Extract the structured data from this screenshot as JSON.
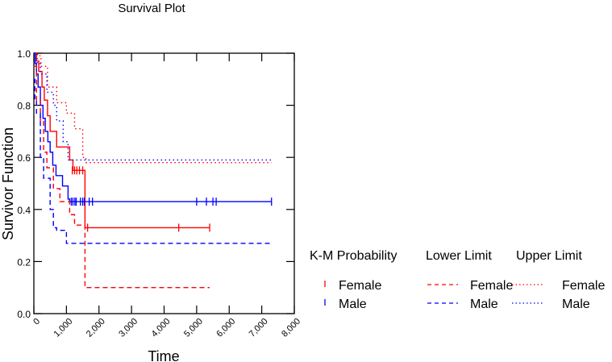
{
  "chart_data": {
    "type": "line",
    "title": "Survival Plot",
    "xlabel": "Time",
    "ylabel": "Survivor Function",
    "xlim": [
      0,
      8000
    ],
    "ylim": [
      0,
      1.0
    ],
    "xticks": [
      0,
      1000,
      2000,
      3000,
      4000,
      5000,
      6000,
      7000,
      8000
    ],
    "xtick_labels": [
      "0",
      "1,000",
      "2,000",
      "3,000",
      "4,000",
      "5,000",
      "6,000",
      "7,000",
      "8,000"
    ],
    "yticks": [
      0,
      0.2,
      0.4,
      0.6,
      0.8,
      1.0
    ],
    "ytick_labels": [
      "0.0",
      "0.2",
      "0.4",
      "0.6",
      "0.8",
      "1.0"
    ],
    "grid": false,
    "legend": {
      "placement": "right",
      "groups": [
        {
          "title": "K-M Probability",
          "entries": [
            {
              "label": "Female",
              "color": "#ff0000",
              "style": "tick"
            },
            {
              "label": "Male",
              "color": "#0000ff",
              "style": "tick"
            }
          ]
        },
        {
          "title": "Lower Limit",
          "entries": [
            {
              "label": "Female",
              "color": "#ff0000",
              "style": "dashed"
            },
            {
              "label": "Male",
              "color": "#0000ff",
              "style": "dashed"
            }
          ]
        },
        {
          "title": "Upper Limit",
          "entries": [
            {
              "label": "Female",
              "color": "#ff0000",
              "style": "dotted"
            },
            {
              "label": "Male",
              "color": "#0000ff",
              "style": "dotted"
            }
          ]
        }
      ]
    },
    "series": [
      {
        "name": "K-M Female",
        "color": "#ff0000",
        "style": "solid",
        "step": true,
        "x": [
          0,
          80,
          150,
          250,
          320,
          420,
          500,
          700,
          950,
          1100,
          1200,
          1350,
          1530,
          1570,
          1620,
          5400
        ],
        "y": [
          1.0,
          0.97,
          0.93,
          0.87,
          0.82,
          0.76,
          0.7,
          0.64,
          0.64,
          0.59,
          0.55,
          0.55,
          0.55,
          0.33,
          0.33,
          0.33
        ],
        "censored_x": [
          1180,
          1250,
          1320,
          1400,
          1500,
          1650,
          4450,
          5400
        ],
        "censored_y": [
          0.55,
          0.55,
          0.55,
          0.55,
          0.55,
          0.33,
          0.33,
          0.33
        ]
      },
      {
        "name": "K-M Male",
        "color": "#0000ff",
        "style": "solid",
        "step": true,
        "x": [
          0,
          40,
          80,
          130,
          200,
          280,
          350,
          430,
          500,
          580,
          680,
          880,
          1050,
          1100,
          7300
        ],
        "y": [
          1.0,
          0.96,
          0.92,
          0.87,
          0.8,
          0.75,
          0.7,
          0.66,
          0.62,
          0.57,
          0.53,
          0.49,
          0.44,
          0.43,
          0.43
        ],
        "censored_x": [
          1150,
          1200,
          1260,
          1300,
          1430,
          1500,
          1550,
          1700,
          1800,
          5000,
          5300,
          5500,
          5600,
          7300
        ],
        "censored_y": [
          0.43,
          0.43,
          0.43,
          0.43,
          0.43,
          0.43,
          0.43,
          0.43,
          0.43,
          0.43,
          0.43,
          0.43,
          0.43,
          0.43
        ]
      },
      {
        "name": "Lower Limit Female",
        "color": "#ff0000",
        "style": "dashed",
        "step": true,
        "x": [
          0,
          80,
          200,
          300,
          400,
          600,
          800,
          1100,
          1250,
          1570,
          1620,
          5400
        ],
        "y": [
          0.95,
          0.82,
          0.74,
          0.62,
          0.56,
          0.48,
          0.43,
          0.38,
          0.34,
          0.1,
          0.1,
          0.1
        ]
      },
      {
        "name": "Lower Limit Male",
        "color": "#0000ff",
        "style": "dashed",
        "step": true,
        "x": [
          0,
          30,
          80,
          200,
          300,
          500,
          600,
          700,
          1000,
          1100,
          7300
        ],
        "y": [
          0.9,
          0.82,
          0.77,
          0.6,
          0.52,
          0.4,
          0.33,
          0.32,
          0.27,
          0.27,
          0.27
        ]
      },
      {
        "name": "Upper Limit Female",
        "color": "#ff0000",
        "style": "dotted",
        "step": true,
        "x": [
          0,
          120,
          220,
          420,
          700,
          1000,
          1250,
          1500,
          1600,
          7300
        ],
        "y": [
          1.0,
          0.99,
          0.95,
          0.87,
          0.81,
          0.77,
          0.71,
          0.6,
          0.58,
          0.58
        ]
      },
      {
        "name": "Upper Limit Male",
        "color": "#0000ff",
        "style": "dotted",
        "step": true,
        "x": [
          0,
          100,
          200,
          400,
          600,
          700,
          900,
          1050,
          7300
        ],
        "y": [
          1.0,
          0.96,
          0.92,
          0.85,
          0.8,
          0.74,
          0.66,
          0.59,
          0.59
        ]
      }
    ]
  }
}
